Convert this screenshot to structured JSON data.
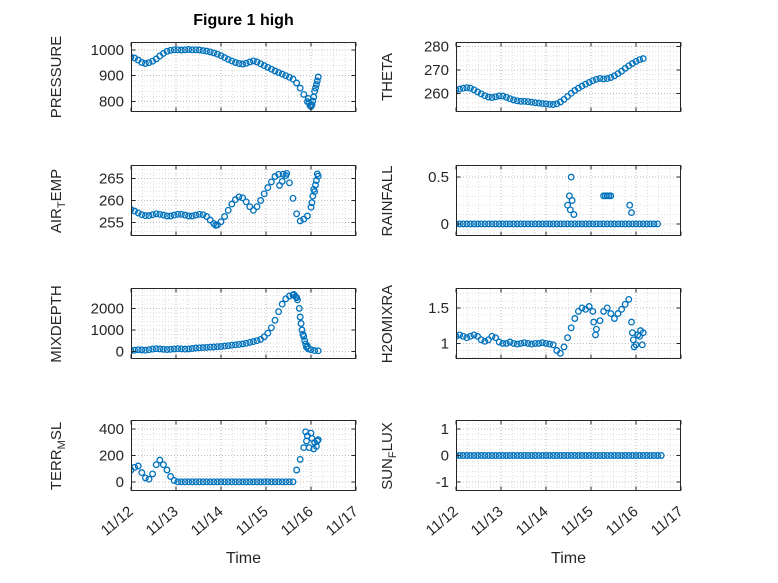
{
  "figure": {
    "title": "Figure 1 high",
    "xlabel": "Time",
    "marker_color": "#0072BD",
    "axis_color": "#262626",
    "grid_color": "#bdbdbd",
    "minor_grid_color": "#dedede"
  },
  "x_axis": {
    "range": [
      0,
      5
    ],
    "tick_labels": [
      "11/12",
      "11/13",
      "11/14",
      "11/15",
      "11/16",
      "11/17"
    ],
    "minor_step": 0.25
  },
  "chart_data": [
    {
      "name": "pressure",
      "type": "scatter",
      "ylabel": {
        "pre": "PRESSURE",
        "sub": "",
        "post": ""
      },
      "ylim": [
        760,
        1030
      ],
      "yticks": [
        800,
        900,
        1000
      ],
      "ytick_labels": [
        "800",
        "900",
        "1000"
      ],
      "x_start": 0,
      "x_step": 0.08,
      "values": [
        972,
        968,
        960,
        951,
        947,
        950,
        956,
        965,
        976,
        986,
        994,
        998,
        1000,
        1000,
        999,
        1000,
        1001,
        1000,
        1000,
        999,
        997,
        995,
        992,
        988,
        983,
        977,
        970,
        963,
        957,
        951,
        947,
        945,
        948,
        953,
        957,
        953,
        946,
        939,
        932,
        925,
        918,
        912,
        906,
        900,
        894,
        887,
        872,
        852,
        828,
        800,
        781,
        840,
        895
      ],
      "extra_points": [
        [
          3.94,
          812
        ],
        [
          3.96,
          795
        ],
        [
          3.98,
          785
        ],
        [
          4.02,
          788
        ],
        [
          4.04,
          802
        ],
        [
          4.06,
          818
        ],
        [
          4.1,
          852
        ],
        [
          4.12,
          866
        ],
        [
          4.14,
          880
        ]
      ]
    },
    {
      "name": "theta",
      "type": "scatter",
      "ylabel": {
        "pre": "THETA",
        "sub": "",
        "post": ""
      },
      "ylim": [
        252,
        282
      ],
      "yticks": [
        260,
        270,
        280
      ],
      "ytick_labels": [
        "260",
        "270",
        "280"
      ],
      "x_start": 0,
      "x_step": 0.08,
      "values": [
        261.5,
        261.8,
        262.2,
        262.4,
        262.2,
        261.5,
        260.6,
        259.8,
        259,
        258.4,
        258.2,
        258.5,
        258.9,
        258.8,
        258.3,
        257.7,
        257.2,
        256.8,
        256.6,
        256.6,
        256.4,
        256.2,
        256,
        255.8,
        255.6,
        255.5,
        255.3,
        255.2,
        255.5,
        256.3,
        257.4,
        258.7,
        260,
        261.2,
        262.2,
        263.1,
        263.9,
        264.7,
        265.4,
        266,
        266.4,
        266.2,
        266.3,
        266.8,
        267.5,
        268.4,
        269.5,
        270.7,
        271.8,
        272.8,
        273.7,
        274.4,
        274.9
      ],
      "extra_points": []
    },
    {
      "name": "air-temp",
      "type": "scatter",
      "ylabel": {
        "pre": "AIR",
        "sub": "T",
        "post": "EMP"
      },
      "ylim": [
        252,
        268
      ],
      "yticks": [
        255,
        260,
        265
      ],
      "ytick_labels": [
        "255",
        "260",
        "265"
      ],
      "x_start": 0,
      "x_step": 0.08,
      "values": [
        258,
        257.6,
        257.2,
        256.8,
        256.6,
        256.6,
        256.8,
        257,
        256.9,
        256.7,
        256.5,
        256.5,
        256.7,
        256.9,
        256.9,
        256.7,
        256.5,
        256.5,
        256.7,
        256.9,
        256.8,
        256.4,
        255.6,
        254.8,
        254.5,
        255.2,
        256.4,
        257.8,
        259.2,
        260.2,
        260.8,
        260.6,
        259.7,
        258.6,
        257.8,
        258.6,
        260,
        261.5,
        262.9,
        264.2,
        265.4,
        265.9,
        264.3,
        265.6,
        264,
        260.5,
        257,
        255.4,
        255.8,
        256.5,
        258.5,
        262,
        265.5
      ],
      "extra_points": [
        [
          1.88,
          254.4
        ],
        [
          3.3,
          263.4
        ],
        [
          3.38,
          265.9
        ],
        [
          3.46,
          266.1
        ],
        [
          4.02,
          259.5
        ],
        [
          4.04,
          261
        ],
        [
          4.06,
          262.5
        ],
        [
          4.1,
          263.5
        ],
        [
          4.12,
          264.5
        ],
        [
          4.14,
          266
        ]
      ]
    },
    {
      "name": "rainfall",
      "type": "scatter",
      "ylabel": {
        "pre": "RAINFALL",
        "sub": "",
        "post": ""
      },
      "ylim": [
        -0.13,
        0.63
      ],
      "yticks": [
        0,
        0.5
      ],
      "ytick_labels": [
        "0",
        "0.5"
      ],
      "x_start": 0,
      "x_step": 0.08,
      "values": [
        0,
        0,
        0,
        0,
        0,
        0,
        0,
        0,
        0,
        0,
        0,
        0,
        0,
        0,
        0,
        0,
        0,
        0,
        0,
        0,
        0,
        0,
        0,
        0,
        0,
        0,
        0,
        0,
        0,
        0,
        0,
        0,
        0,
        0,
        0,
        0,
        0,
        0,
        0,
        0,
        0,
        0,
        0,
        0,
        0,
        0,
        0,
        0,
        0,
        0,
        0,
        0,
        0
      ],
      "extra_points": [
        [
          2.48,
          0.2
        ],
        [
          2.52,
          0.3
        ],
        [
          2.54,
          0.15
        ],
        [
          2.56,
          0.5
        ],
        [
          2.58,
          0.25
        ],
        [
          2.62,
          0.1
        ],
        [
          3.28,
          0.3
        ],
        [
          3.32,
          0.3
        ],
        [
          3.36,
          0.3
        ],
        [
          3.4,
          0.3
        ],
        [
          3.44,
          0.3
        ],
        [
          3.86,
          0.2
        ],
        [
          3.9,
          0.12
        ],
        [
          4.24,
          0
        ],
        [
          4.32,
          0
        ],
        [
          4.4,
          0
        ],
        [
          4.48,
          0
        ]
      ]
    },
    {
      "name": "mixdepth",
      "type": "scatter",
      "ylabel": {
        "pre": "MIXDEPTH",
        "sub": "",
        "post": ""
      },
      "ylim": [
        -350,
        2950
      ],
      "yticks": [
        0,
        1000,
        2000
      ],
      "ytick_labels": [
        "0",
        "1000",
        "2000"
      ],
      "x_start": 0,
      "x_step": 0.08,
      "values": [
        40,
        60,
        80,
        70,
        60,
        80,
        110,
        130,
        120,
        100,
        90,
        100,
        120,
        130,
        120,
        110,
        120,
        140,
        160,
        170,
        180,
        190,
        200,
        210,
        220,
        230,
        250,
        270,
        290,
        310,
        330,
        350,
        380,
        420,
        460,
        500,
        560,
        680,
        850,
        1100,
        1450,
        1850,
        2200,
        2450,
        2580,
        2620,
        2500,
        1600,
        700,
        250,
        80,
        40,
        30
      ],
      "extra_points": [
        [
          3.62,
          2650
        ],
        [
          3.66,
          2550
        ],
        [
          3.7,
          2400
        ],
        [
          3.74,
          2000
        ],
        [
          3.78,
          1300
        ],
        [
          3.8,
          1000
        ],
        [
          3.82,
          800
        ],
        [
          3.86,
          500
        ],
        [
          3.88,
          350
        ],
        [
          3.9,
          200
        ],
        [
          3.94,
          120
        ]
      ]
    },
    {
      "name": "h2omixra",
      "type": "scatter",
      "ylabel": {
        "pre": "H2OMIXRA",
        "sub": "",
        "post": ""
      },
      "ylim": [
        0.78,
        1.78
      ],
      "yticks": [
        1,
        1.5
      ],
      "ytick_labels": [
        "1",
        "1.5"
      ],
      "x_start": 0,
      "x_step": 0.08,
      "values": [
        1.1,
        1.12,
        1.1,
        1.08,
        1.1,
        1.12,
        1.1,
        1.05,
        1.03,
        1.05,
        1.1,
        1.08,
        1.02,
        1,
        1,
        1.02,
        1,
        0.99,
        1,
        1.01,
        1,
        0.99,
        1,
        1,
        1.01,
        1,
        0.99,
        0.98,
        0.9,
        0.86,
        0.95,
        1.08,
        1.22,
        1.35,
        1.45,
        1.5,
        1.48,
        1.52,
        1.45,
        1.2,
        1.32,
        1.45,
        1.5,
        1.42,
        1.35,
        1.42,
        1.48,
        1.55,
        1.62,
        1.15,
        0.98,
        1.1,
        1.15
      ],
      "extra_points": [
        [
          3.06,
          1.3
        ],
        [
          3.1,
          1.12
        ],
        [
          3.9,
          1.3
        ],
        [
          3.94,
          1.05
        ],
        [
          3.96,
          0.95
        ],
        [
          4.04,
          1.12
        ],
        [
          4.1,
          1.18
        ],
        [
          4.14,
          0.98
        ]
      ]
    },
    {
      "name": "terr-msl",
      "type": "scatter",
      "ylabel": {
        "pre": "TERR",
        "sub": "M",
        "post": "SL"
      },
      "ylim": [
        -70,
        470
      ],
      "yticks": [
        0,
        200,
        400
      ],
      "ytick_labels": [
        "0",
        "200",
        "400"
      ],
      "x_start": 0,
      "x_step": 0.08,
      "values": [
        90,
        110,
        120,
        70,
        30,
        20,
        60,
        130,
        165,
        130,
        90,
        40,
        10,
        0,
        0,
        0,
        0,
        0,
        0,
        0,
        0,
        0,
        0,
        0,
        0,
        0,
        0,
        0,
        0,
        0,
        0,
        0,
        0,
        0,
        0,
        0,
        0,
        0,
        0,
        0,
        0,
        0,
        0,
        0,
        0,
        0,
        90,
        170,
        260,
        350,
        370,
        300,
        320
      ],
      "extra_points": [
        [
          3.88,
          380
        ],
        [
          3.9,
          310
        ],
        [
          3.96,
          260
        ],
        [
          4.02,
          330
        ],
        [
          4.06,
          250
        ],
        [
          4.12,
          270
        ],
        [
          4.14,
          310
        ]
      ]
    },
    {
      "name": "sun-flux",
      "type": "scatter",
      "ylabel": {
        "pre": "SUN",
        "sub": "F",
        "post": "LUX"
      },
      "ylim": [
        -1.35,
        1.35
      ],
      "yticks": [
        -1,
        0,
        1
      ],
      "ytick_labels": [
        "-1",
        "0",
        "1"
      ],
      "x_start": 0,
      "x_step": 0.08,
      "values": [
        0,
        0,
        0,
        0,
        0,
        0,
        0,
        0,
        0,
        0,
        0,
        0,
        0,
        0,
        0,
        0,
        0,
        0,
        0,
        0,
        0,
        0,
        0,
        0,
        0,
        0,
        0,
        0,
        0,
        0,
        0,
        0,
        0,
        0,
        0,
        0,
        0,
        0,
        0,
        0,
        0,
        0,
        0,
        0,
        0,
        0,
        0,
        0,
        0,
        0,
        0,
        0,
        0
      ],
      "extra_points": [
        [
          4.24,
          0
        ],
        [
          4.32,
          0
        ],
        [
          4.4,
          0
        ],
        [
          4.48,
          0
        ],
        [
          4.56,
          0
        ]
      ]
    }
  ]
}
